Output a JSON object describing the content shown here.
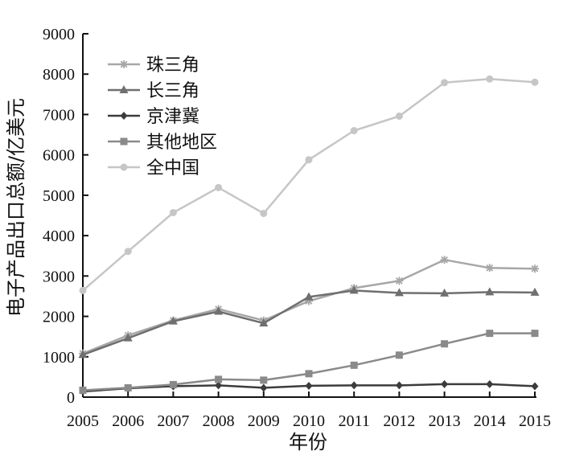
{
  "chart_data": {
    "type": "line",
    "title": "",
    "xlabel": "年份",
    "ylabel": "电子产品出口总额/亿美元",
    "x": [
      2005,
      2006,
      2007,
      2008,
      2009,
      2010,
      2011,
      2012,
      2013,
      2014,
      2015
    ],
    "ylim": [
      0,
      9000
    ],
    "yticks": [
      0,
      1000,
      2000,
      3000,
      4000,
      5000,
      6000,
      7000,
      8000,
      9000
    ],
    "legend_position": "top-left",
    "grid": false,
    "series": [
      {
        "name": "珠三角",
        "marker": "asterisk",
        "color": "#a7a7a7",
        "values": [
          1080,
          1530,
          1900,
          2180,
          1900,
          2380,
          2700,
          2880,
          3400,
          3200,
          3180
        ]
      },
      {
        "name": "长三角",
        "marker": "triangle",
        "color": "#6f6f6f",
        "values": [
          1050,
          1460,
          1880,
          2120,
          1830,
          2480,
          2640,
          2580,
          2570,
          2600,
          2590
        ]
      },
      {
        "name": "京津冀",
        "marker": "diamond",
        "color": "#3c3c3c",
        "values": [
          140,
          220,
          270,
          290,
          230,
          280,
          290,
          290,
          320,
          320,
          270
        ]
      },
      {
        "name": "其他地区",
        "marker": "square",
        "color": "#8a8a8a",
        "values": [
          170,
          230,
          310,
          440,
          420,
          580,
          790,
          1040,
          1320,
          1580,
          1580
        ]
      },
      {
        "name": "全中国",
        "marker": "circle",
        "color": "#c6c6c6",
        "values": [
          2640,
          3610,
          4570,
          5190,
          4550,
          5880,
          6600,
          6960,
          7790,
          7880,
          7800
        ]
      }
    ]
  }
}
